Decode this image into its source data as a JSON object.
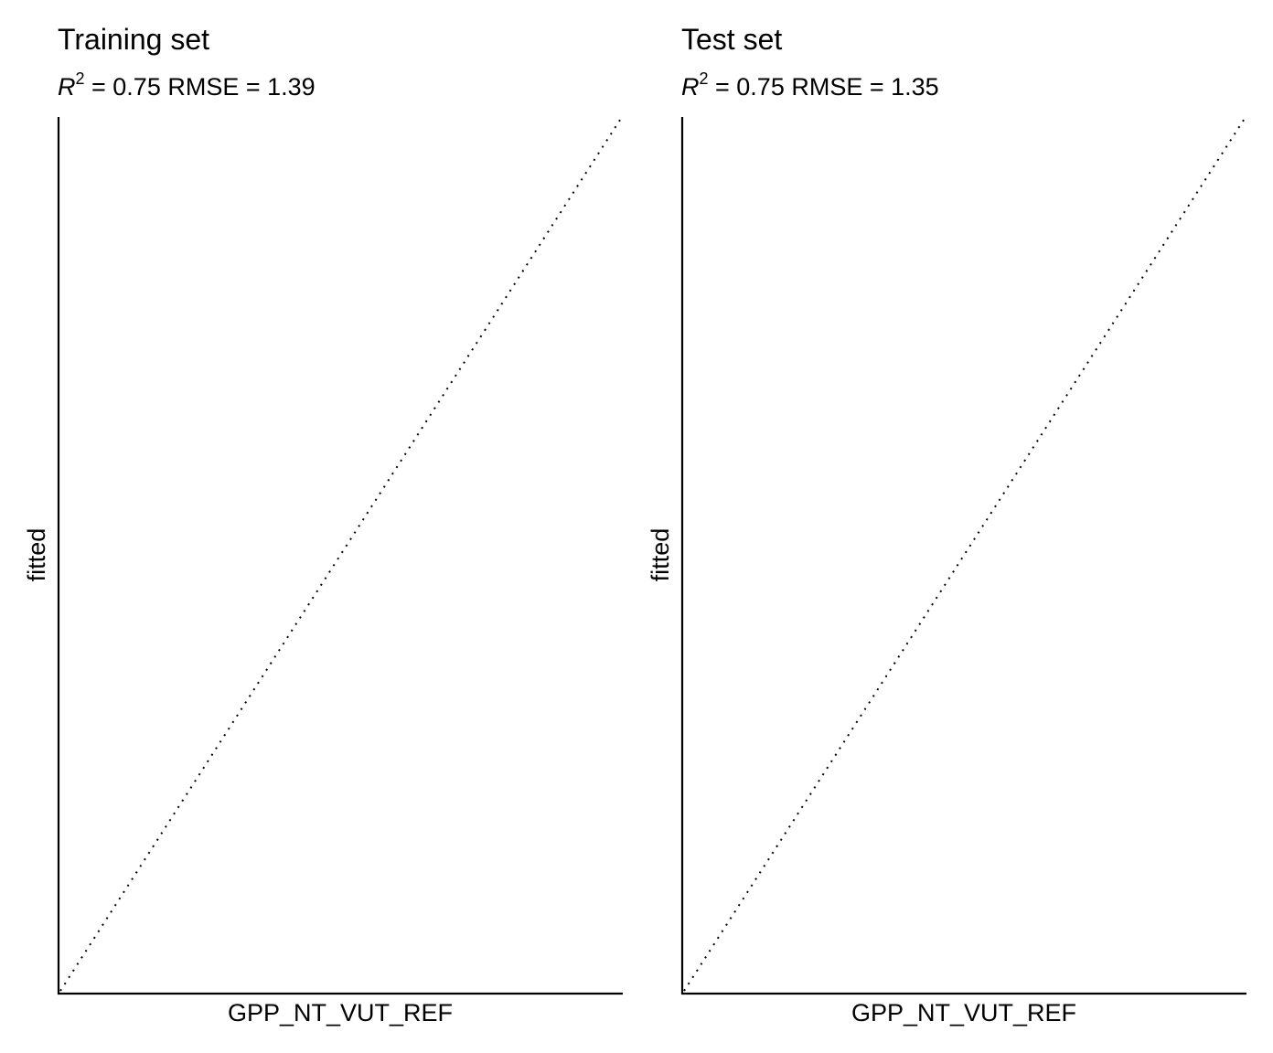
{
  "chart_data": [
    {
      "type": "scatter",
      "title": "Training set",
      "subtitle": {
        "r2_symbol": "R",
        "r2_exponent": "2",
        "r2_text": " = 0.75  RMSE = 1.39"
      },
      "xlabel": "GPP_NT_VUT_REF",
      "ylabel": "fitted",
      "xlim": [
        0,
        1
      ],
      "ylim": [
        0,
        1
      ],
      "grid": false,
      "series": [],
      "reference_line": {
        "style": "dotted",
        "x": [
          0,
          1
        ],
        "y": [
          0,
          1
        ]
      }
    },
    {
      "type": "scatter",
      "title": "Test set",
      "subtitle": {
        "r2_symbol": "R",
        "r2_exponent": "2",
        "r2_text": " = 0.75  RMSE = 1.35"
      },
      "xlabel": "GPP_NT_VUT_REF",
      "ylabel": "fitted",
      "xlim": [
        0,
        1
      ],
      "ylim": [
        0,
        1
      ],
      "grid": false,
      "series": [],
      "reference_line": {
        "style": "dotted",
        "x": [
          0,
          1
        ],
        "y": [
          0,
          1
        ]
      }
    }
  ]
}
